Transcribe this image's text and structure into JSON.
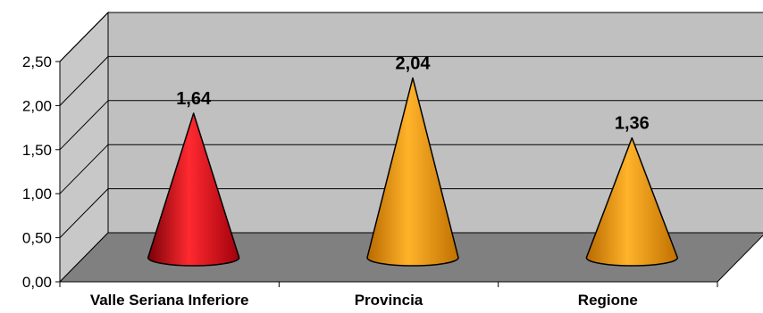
{
  "chart_data": {
    "type": "bar",
    "shape": "cone-3d",
    "categories": [
      "Valle Seriana Inferiore",
      "Provincia",
      "Regione"
    ],
    "values": [
      1.64,
      2.04,
      1.36
    ],
    "data_labels": [
      "1,64",
      "2,04",
      "1,36"
    ],
    "ylim": [
      0,
      2.5
    ],
    "yticks": [
      "0,00",
      "0,50",
      "1,00",
      "1,50",
      "2,00",
      "2,50"
    ],
    "grid": true,
    "colors": {
      "series": [
        "#e8121e",
        "#f6a21a",
        "#f6a21a"
      ],
      "back_wall": "#c0c0c0",
      "side_wall": "#c8c8c8",
      "floor": "#808080"
    }
  }
}
